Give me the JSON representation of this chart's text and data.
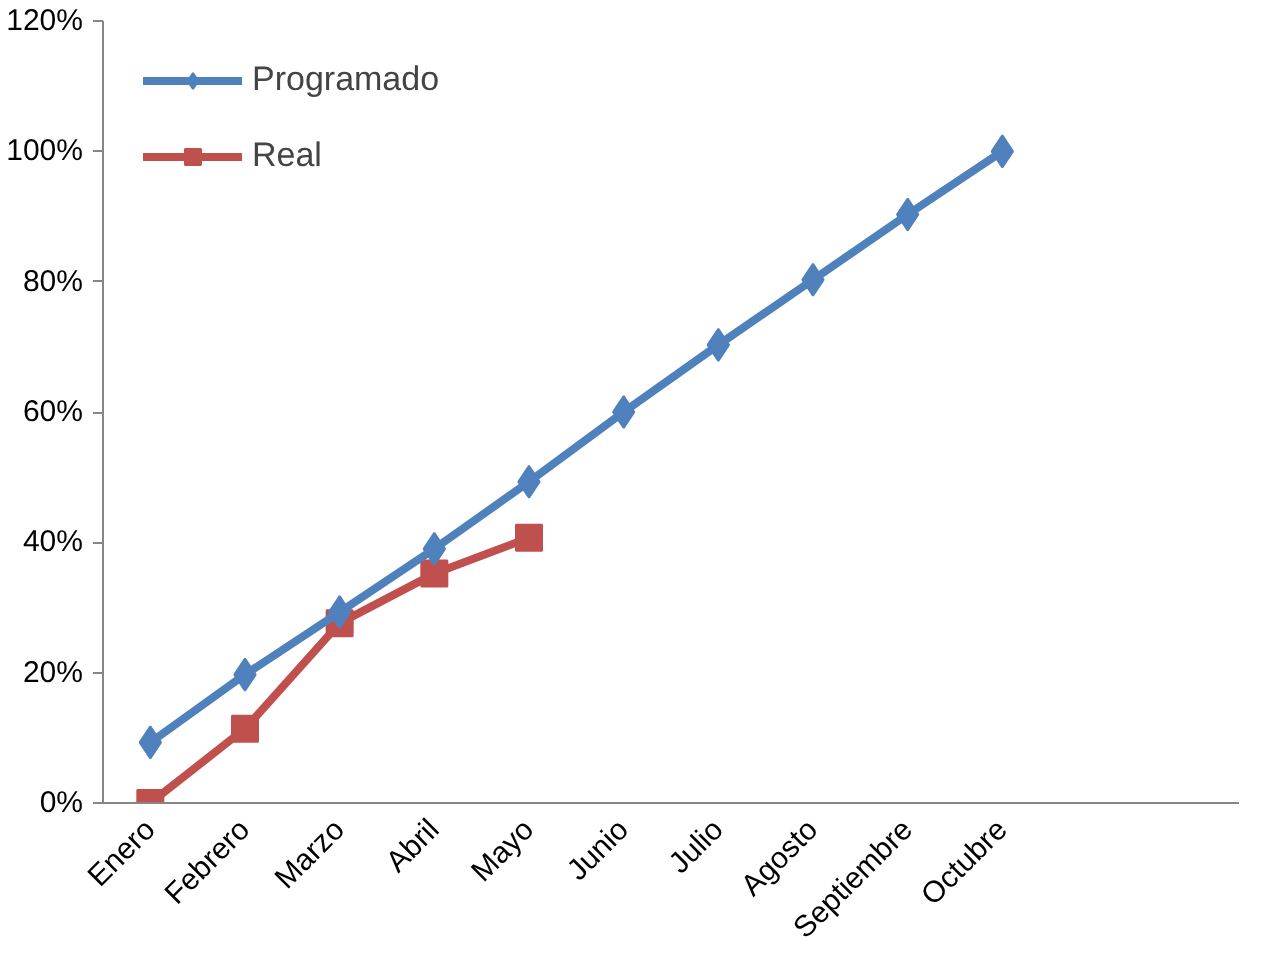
{
  "chart_data": {
    "type": "line",
    "categories": [
      "Enero",
      "Febrero",
      "Marzo",
      "Abril",
      "Mayo",
      "Junio",
      "Julio",
      "Agosto",
      "Septiembre",
      "Octubre",
      null,
      null
    ],
    "series": [
      {
        "name": "Programado",
        "color": "#4f81bd",
        "marker": "diamond",
        "values": [
          9.3,
          19.7,
          29.3,
          39,
          49.3,
          60,
          70.3,
          80.3,
          90.3,
          100,
          null,
          null
        ]
      },
      {
        "name": "Real",
        "color": "#c0504d",
        "marker": "square",
        "values": [
          0,
          11.4,
          27.6,
          35.2,
          40.7,
          null,
          null,
          null,
          null,
          null,
          null,
          null
        ]
      }
    ],
    "ylim": [
      0,
      120
    ],
    "yticks": [
      {
        "value": 0,
        "label": "0%"
      },
      {
        "value": 20,
        "label": "20%"
      },
      {
        "value": 40,
        "label": "40%"
      },
      {
        "value": 60,
        "label": "60%"
      },
      {
        "value": 80,
        "label": "80%"
      },
      {
        "value": 100,
        "label": "100%"
      },
      {
        "value": 120,
        "label": "120%"
      }
    ],
    "grid": false,
    "legend": "top left",
    "line_style": "solid"
  }
}
